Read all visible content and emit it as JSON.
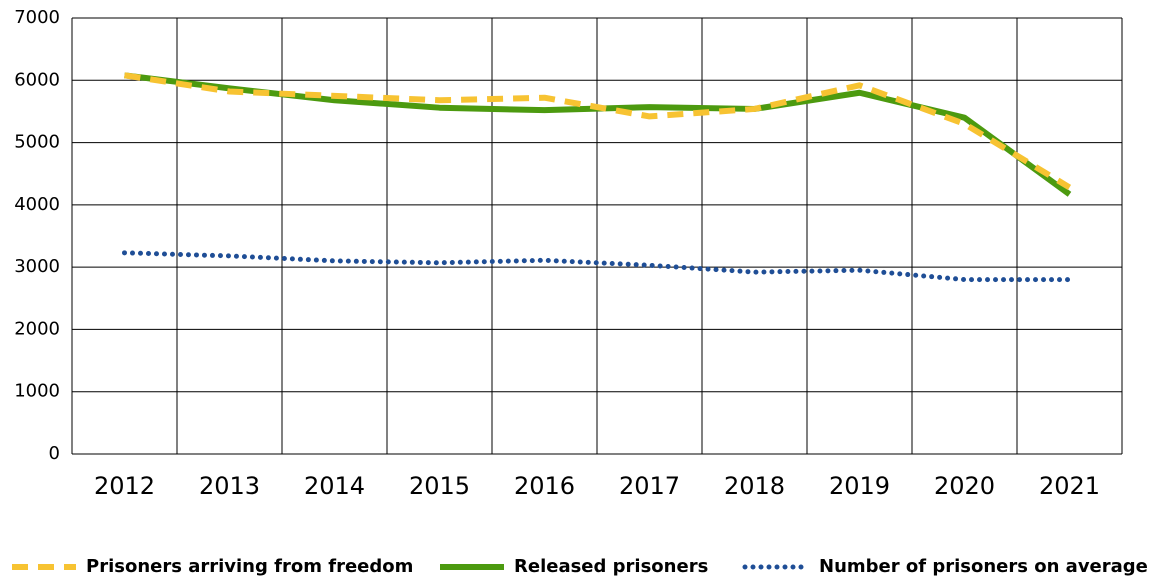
{
  "chart_data": {
    "type": "line",
    "categories": [
      "2012",
      "2013",
      "2014",
      "2015",
      "2016",
      "2017",
      "2018",
      "2019",
      "2020",
      "2021"
    ],
    "series": [
      {
        "name": "Prisoners arriving from freedom",
        "color": "#f7c332",
        "dash": "dashed",
        "values": [
          6080,
          5820,
          5750,
          5680,
          5720,
          5420,
          5540,
          5920,
          5300,
          4280
        ]
      },
      {
        "name": "Released prisoners",
        "color": "#4c9a0f",
        "dash": "solid",
        "values": [
          6080,
          5870,
          5680,
          5560,
          5520,
          5570,
          5540,
          5800,
          5400,
          4170
        ]
      },
      {
        "name": "Number of prisoners on average",
        "color": "#1f4e96",
        "dash": "dotted",
        "values": [
          3230,
          3180,
          3100,
          3070,
          3110,
          3030,
          2920,
          2950,
          2800,
          2800
        ]
      }
    ],
    "ylim": [
      0,
      7000
    ],
    "yticks": [
      0,
      1000,
      2000,
      3000,
      4000,
      5000,
      6000,
      7000
    ],
    "grid": true,
    "legend": "bottom"
  }
}
